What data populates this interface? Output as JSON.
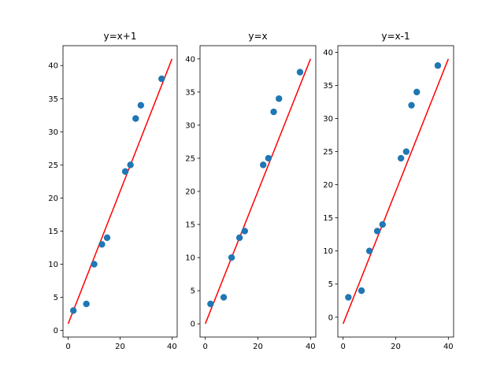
{
  "chart_data": [
    {
      "type": "scatter",
      "title": "y=x+1",
      "x": [
        2,
        7,
        10,
        13,
        15,
        22,
        24,
        26,
        28,
        36
      ],
      "y": [
        3,
        4,
        10,
        13,
        14,
        24,
        25,
        32,
        34,
        38
      ],
      "line": {
        "x": [
          0,
          40
        ],
        "y": [
          1,
          41
        ],
        "color": "#ff0000"
      },
      "xlim": [
        -2,
        42
      ],
      "ylim": [
        -1,
        43
      ],
      "xticks": [
        0,
        20,
        40
      ],
      "yticks": [
        0,
        5,
        10,
        15,
        20,
        25,
        30,
        35,
        40
      ],
      "grid": false
    },
    {
      "type": "scatter",
      "title": "y=x",
      "x": [
        2,
        7,
        10,
        13,
        15,
        22,
        24,
        26,
        28,
        36
      ],
      "y": [
        3,
        4,
        10,
        13,
        14,
        24,
        25,
        32,
        34,
        38
      ],
      "line": {
        "x": [
          0,
          40
        ],
        "y": [
          0,
          40
        ],
        "color": "#ff0000"
      },
      "xlim": [
        -2,
        42
      ],
      "ylim": [
        -2,
        42
      ],
      "xticks": [
        0,
        20,
        40
      ],
      "yticks": [
        0,
        5,
        10,
        15,
        20,
        25,
        30,
        35,
        40
      ],
      "grid": false
    },
    {
      "type": "scatter",
      "title": "y=x-1",
      "x": [
        2,
        7,
        10,
        13,
        15,
        22,
        24,
        26,
        28,
        36
      ],
      "y": [
        3,
        4,
        10,
        13,
        14,
        24,
        25,
        32,
        34,
        38
      ],
      "line": {
        "x": [
          0,
          40
        ],
        "y": [
          -1,
          39
        ],
        "color": "#ff0000"
      },
      "xlim": [
        -2,
        42
      ],
      "ylim": [
        -3,
        41
      ],
      "xticks": [
        0,
        20,
        40
      ],
      "yticks": [
        0,
        5,
        10,
        15,
        20,
        25,
        30,
        35,
        40
      ],
      "grid": false
    }
  ],
  "colors": {
    "points": "#1f77b4",
    "line": "#ff0000",
    "axes": "#000000"
  }
}
